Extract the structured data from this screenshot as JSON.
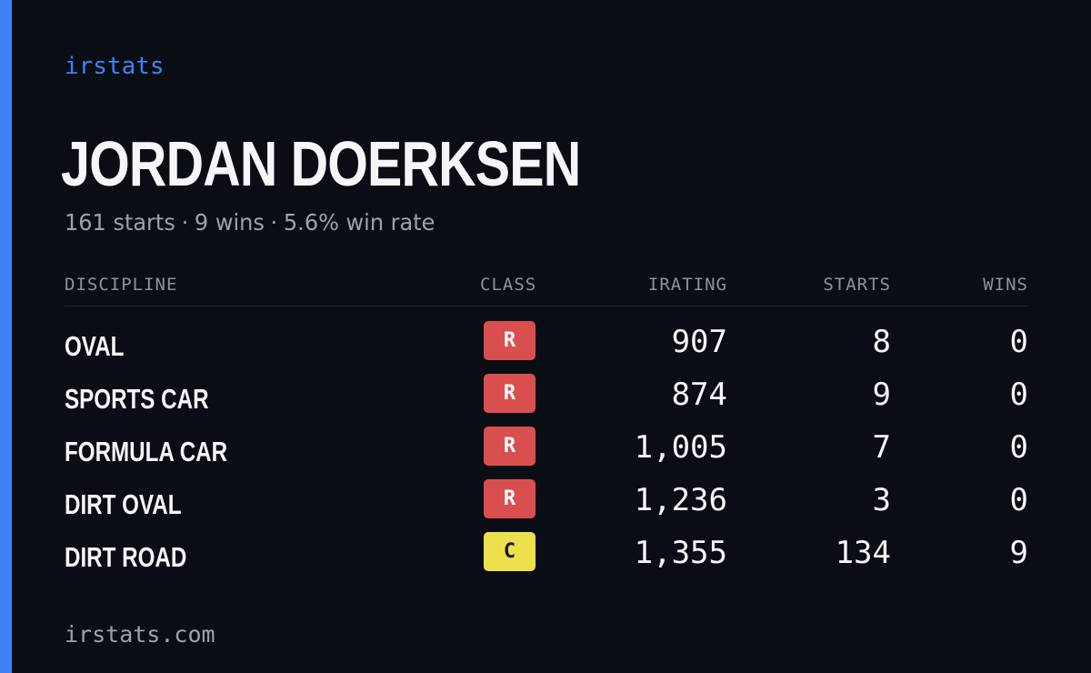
{
  "brand": "irstats",
  "driver": {
    "name": "JORDAN DOERKSEN",
    "summary": {
      "starts": "161 starts",
      "wins": "9 wins",
      "win_rate": "5.6% win rate",
      "separator": "·"
    }
  },
  "table": {
    "headers": {
      "discipline": "DISCIPLINE",
      "class": "CLASS",
      "irating": "IRATING",
      "starts": "STARTS",
      "wins": "WINS"
    },
    "rows": [
      {
        "discipline": "OVAL",
        "class": "R",
        "class_color": "#d94f4f",
        "class_text_color": "#ffffff",
        "irating": "907",
        "starts": "8",
        "wins": "0"
      },
      {
        "discipline": "SPORTS CAR",
        "class": "R",
        "class_color": "#d94f4f",
        "class_text_color": "#ffffff",
        "irating": "874",
        "starts": "9",
        "wins": "0"
      },
      {
        "discipline": "FORMULA CAR",
        "class": "R",
        "class_color": "#d94f4f",
        "class_text_color": "#ffffff",
        "irating": "1,005",
        "starts": "7",
        "wins": "0"
      },
      {
        "discipline": "DIRT OVAL",
        "class": "R",
        "class_color": "#d94f4f",
        "class_text_color": "#ffffff",
        "irating": "1,236",
        "starts": "3",
        "wins": "0"
      },
      {
        "discipline": "DIRT ROAD",
        "class": "C",
        "class_color": "#ece14d",
        "class_text_color": "#1a1a1a",
        "irating": "1,355",
        "starts": "134",
        "wins": "9"
      }
    ]
  },
  "footer": "irstats.com",
  "colors": {
    "background": "#0b0d14",
    "accent": "#3b82f6",
    "text_primary": "#f5f6f8",
    "text_muted": "#9aa3b2"
  }
}
